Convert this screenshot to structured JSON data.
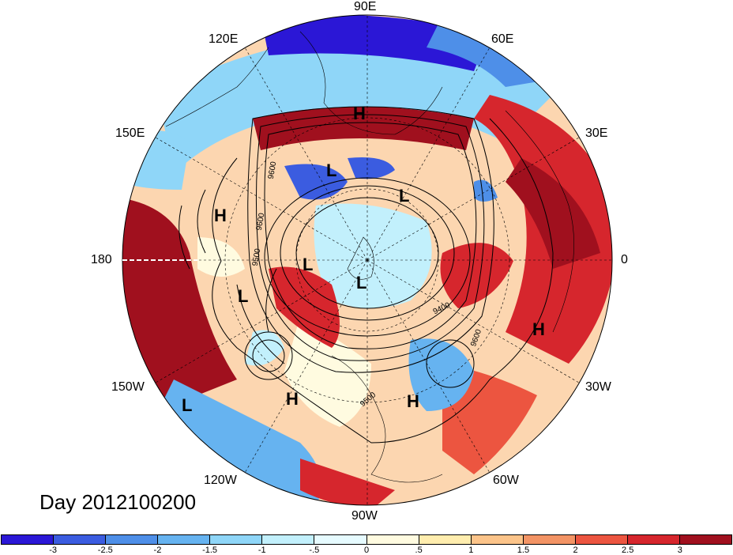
{
  "date_label": "Day 2012100200",
  "longitude_labels": {
    "deg0": "0",
    "e30": "30E",
    "e60": "60E",
    "e90": "90E",
    "e120": "120E",
    "e150": "150E",
    "deg180": "180",
    "w150": "150W",
    "w120": "120W",
    "w90": "90W",
    "w60": "60W",
    "w30": "30W"
  },
  "pressure_centers": {
    "h1": "H",
    "h2": "H",
    "h3": "H",
    "h4": "H",
    "h5": "H",
    "l1": "L",
    "l2": "L",
    "l3": "L",
    "l4": "L",
    "l5": "L",
    "l6": "L"
  },
  "contour_labels": {
    "c1": "9600",
    "c2": "9600",
    "c3": "9500",
    "c4": "9400",
    "c5": "9600",
    "c6": "9500"
  },
  "colorbar": {
    "colors": [
      "#2b17d6",
      "#3b5ce0",
      "#4e8fe8",
      "#66b3f0",
      "#8fd6f8",
      "#c2f0fc",
      "#e6fbff",
      "#fffbe0",
      "#ffedae",
      "#fcc48a",
      "#f39465",
      "#ec5540",
      "#d6262d",
      "#a0101e"
    ],
    "tick_labels": [
      "-3",
      "-2.5",
      "-2",
      "-1.5",
      "-1",
      "-.5",
      "0",
      ".5",
      "1",
      "1.5",
      "2",
      "2.5",
      "3"
    ]
  }
}
